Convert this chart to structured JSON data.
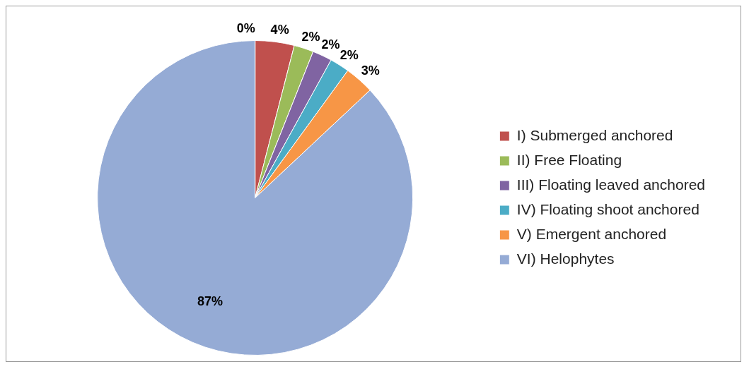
{
  "chart_data": {
    "type": "pie",
    "categories": [
      null,
      "I) Submerged anchored",
      "II) Free Floating",
      "III) Floating leaved anchored",
      "IV) Floating shoot anchored",
      "V) Emergent anchored",
      "VI) Helophytes"
    ],
    "values": [
      0,
      4,
      2,
      2,
      2,
      3,
      87
    ],
    "colors": [
      "#4f81bd",
      "#c0504d",
      "#9bbb59",
      "#8064a2",
      "#4bacc6",
      "#f79646",
      "#95abd5"
    ],
    "value_labels": [
      "0%",
      "4%",
      "2%",
      "2%",
      "2%",
      "3%",
      "87%"
    ],
    "legend": "right"
  }
}
